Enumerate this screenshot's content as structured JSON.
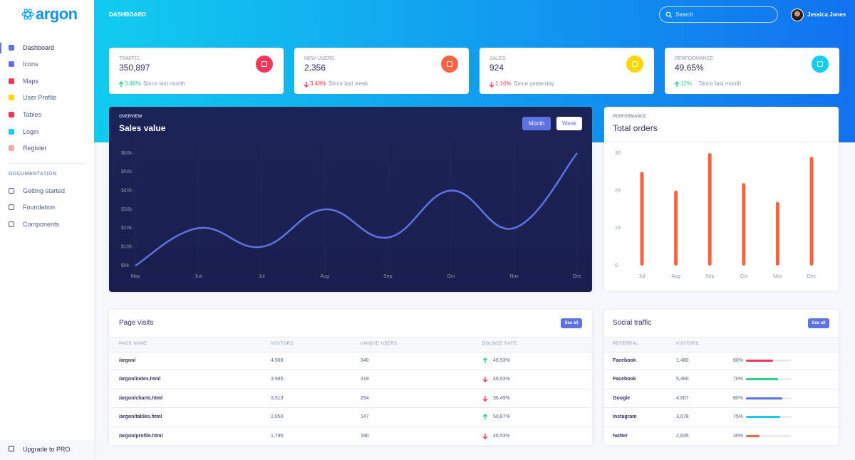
{
  "sidebar": {
    "brand": "argon",
    "nav": [
      "Dashboard",
      "Icons",
      "Maps",
      "User Profile",
      "Tables",
      "Login",
      "Register"
    ],
    "nav_colors": [
      "#5e72e4",
      "#5e72e4",
      "#f5365c",
      "#ffd600",
      "#f5365c",
      "#11cdef",
      "#f3a4b5"
    ],
    "section": "DOCUMENTATION",
    "docs": [
      "Getting started",
      "Foundation",
      "Components"
    ],
    "upgrade": "Upgrade to PRO"
  },
  "header": {
    "title": "DASHBOARD",
    "search": "Search",
    "user": "Jessica Jones"
  },
  "stats": [
    {
      "label": "TRAFFIC",
      "value": "350,897",
      "change": "3.48%",
      "trend": "up",
      "since": "Since last month",
      "icon_color": "#f5365c"
    },
    {
      "label": "NEW USERS",
      "value": "2,356",
      "change": "3.48%",
      "trend": "down",
      "since": "Since last week",
      "icon_color": "#fb6340"
    },
    {
      "label": "SALES",
      "value": "924",
      "change": "1.10%",
      "trend": "down",
      "since": "Since yesterday",
      "icon_color": "#ffd600"
    },
    {
      "label": "PERFORMANCE",
      "value": "49,65%",
      "change": "12%",
      "trend": "up",
      "since": "Since last month",
      "icon_color": "#11cdef"
    }
  ],
  "chart_data": [
    {
      "type": "line",
      "overline": "OVERVIEW",
      "title": "Sales value",
      "buttons": [
        "Month",
        "Week"
      ],
      "categories": [
        "May",
        "Jun",
        "Jul",
        "Aug",
        "Sep",
        "Oct",
        "Nov",
        "Dec"
      ],
      "values": [
        0,
        20,
        10,
        30,
        15,
        40,
        20,
        60
      ],
      "color": "#5e72e4",
      "ylim": [
        0,
        60
      ],
      "yticks": [
        {
          "value": 0,
          "label": "$0k"
        },
        {
          "value": 10,
          "label": "$10k"
        },
        {
          "value": 20,
          "label": "$20k"
        },
        {
          "value": 30,
          "label": "$30k"
        },
        {
          "value": 40,
          "label": "$40k"
        },
        {
          "value": 50,
          "label": "$50k"
        },
        {
          "value": 60,
          "label": "$60k"
        }
      ],
      "grid": false
    },
    {
      "type": "bar",
      "overline": "PERFORMANCE",
      "title": "Total orders",
      "categories": [
        "Jul",
        "Aug",
        "Sep",
        "Oct",
        "Nov",
        "Dec"
      ],
      "values": [
        25,
        20,
        30,
        22,
        17,
        29
      ],
      "color": "#fb6340",
      "ylim": [
        0,
        30
      ],
      "yticks": [
        0,
        10,
        20,
        30
      ],
      "grid": false
    }
  ],
  "page_visits": {
    "title": "Page visits",
    "button": "See all",
    "columns": [
      "PAGE NAME",
      "VISITORS",
      "UNIQUE USERS",
      "BOUNCE RATE"
    ],
    "rows": [
      [
        "/argon/",
        "4,569",
        "340",
        "46,53%"
      ],
      [
        "/argon/index.html",
        "3,985",
        "319",
        "46,53%"
      ],
      [
        "/argon/charts.html",
        "3,513",
        "294",
        "36,49%"
      ],
      [
        "/argon/tables.html",
        "2,050",
        "147",
        "50,87%"
      ],
      [
        "/argon/profile.html",
        "1,795",
        "190",
        "46,53%"
      ]
    ],
    "trends": [
      "up",
      "down",
      "down",
      "up",
      "down"
    ]
  },
  "social_traffic": {
    "title": "Social traffic",
    "button": "See all",
    "columns": [
      "REFERRAL",
      "VISITORS"
    ],
    "rows": [
      {
        "name": "Facebook",
        "visitors": "1,480",
        "percent": {
          "value": 60,
          "label": "60%"
        },
        "color": "#f5365c"
      },
      {
        "name": "Facebook",
        "visitors": "5,480",
        "percent": {
          "value": 70,
          "label": "70%"
        },
        "color": "#2dce89"
      },
      {
        "name": "Google",
        "visitors": "4,807",
        "percent": {
          "value": 80,
          "label": "80%"
        },
        "color": "#5e72e4"
      },
      {
        "name": "Instagram",
        "visitors": "3,678",
        "percent": {
          "value": 75,
          "label": "75%"
        },
        "color": "#11cdef"
      },
      {
        "name": "twitter",
        "visitors": "2,645",
        "percent": {
          "value": 30,
          "label": "30%"
        },
        "color": "#fb6340"
      }
    ]
  }
}
